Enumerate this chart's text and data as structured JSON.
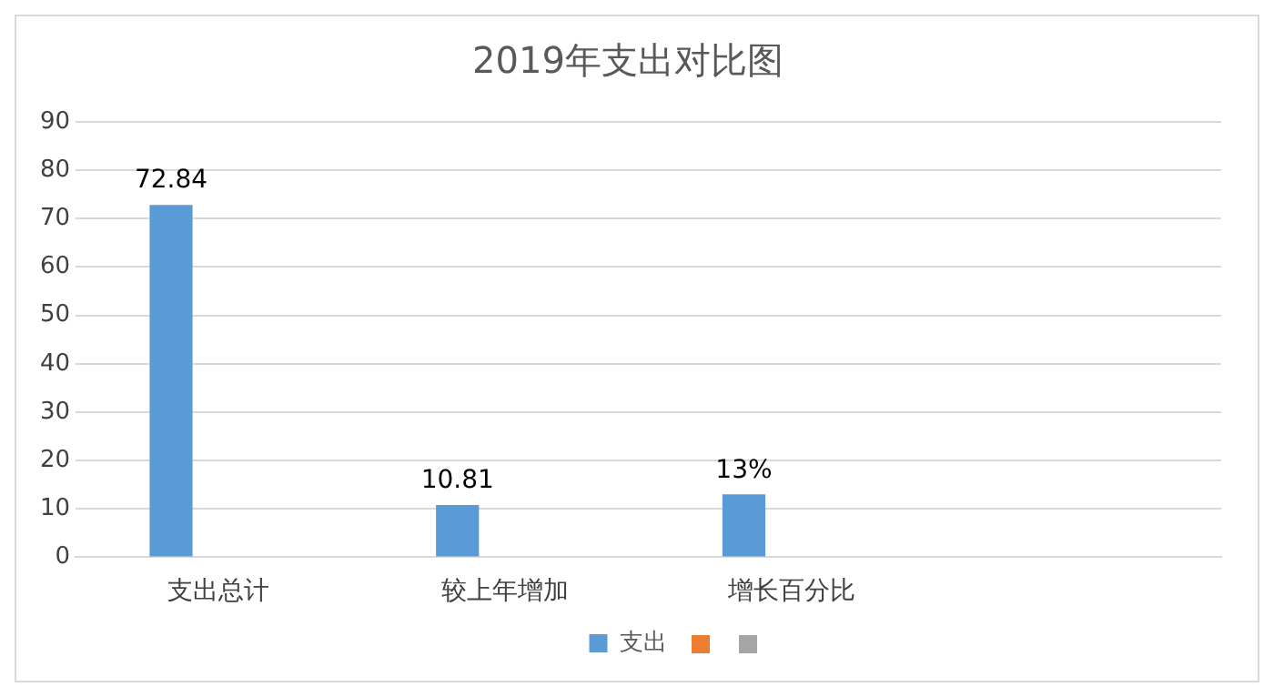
{
  "chart_data": {
    "type": "bar",
    "title": "2019年支出对比图",
    "categories": [
      "支出总计",
      "较上年增加",
      "增长百分比",
      null
    ],
    "series": [
      {
        "name": "支出",
        "color": "#5b9bd5",
        "values": [
          72.84,
          10.81,
          13,
          null
        ],
        "value_labels": [
          "72.84",
          "10.81",
          "13%",
          null
        ]
      },
      {
        "color": "#ed7d31",
        "values": [
          null,
          null,
          null,
          null
        ]
      },
      {
        "color": "#a5a5a5",
        "values": [
          null,
          null,
          null,
          null
        ]
      }
    ],
    "ylim": [
      0,
      90
    ],
    "yticks": [
      0,
      10,
      20,
      30,
      40,
      50,
      60,
      70,
      80,
      90
    ],
    "grid": "y",
    "legend": "bottom"
  }
}
